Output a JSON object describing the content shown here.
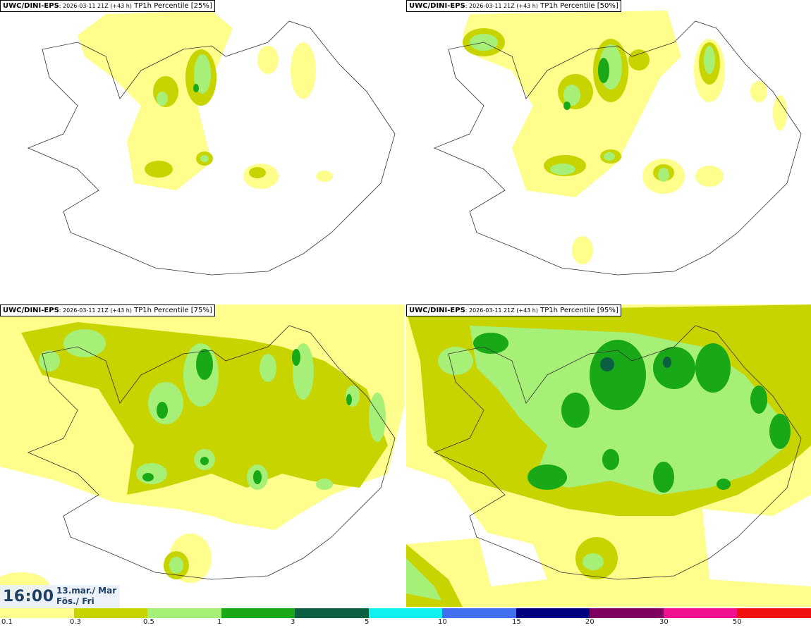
{
  "panels": [
    {
      "source": "UWC/DINI-EPS",
      "run": ": 2026-03-11 21Z (+43 h)",
      "product": "TP1h Percentile [25%]"
    },
    {
      "source": "UWC/DINI-EPS",
      "run": ": 2026-03-11 21Z (+43 h)",
      "product": "TP1h Percentile [50%]"
    },
    {
      "source": "UWC/DINI-EPS",
      "run": ": 2026-03-11 21Z (+43 h)",
      "product": "TP1h Percentile [75%]"
    },
    {
      "source": "UWC/DINI-EPS",
      "run": ": 2026-03-11 21Z (+43 h)",
      "product": "TP1h Percentile [95%]"
    }
  ],
  "valid_time": {
    "clock": "16:00",
    "date_line": "13.mar./ Mar",
    "day_line": "Fös./ Fri"
  },
  "legend": {
    "labels": [
      "0.1",
      "0.3",
      "0.5",
      "1",
      "3",
      "5",
      "10",
      "15",
      "20",
      "30",
      "50"
    ],
    "colors": [
      "#fefe8c",
      "#c8d400",
      "#a7f078",
      "#18a818",
      "#0a6040",
      "#10f0f0",
      "#4070f0",
      "#000080",
      "#800060",
      "#f01090",
      "#f01010"
    ]
  }
}
